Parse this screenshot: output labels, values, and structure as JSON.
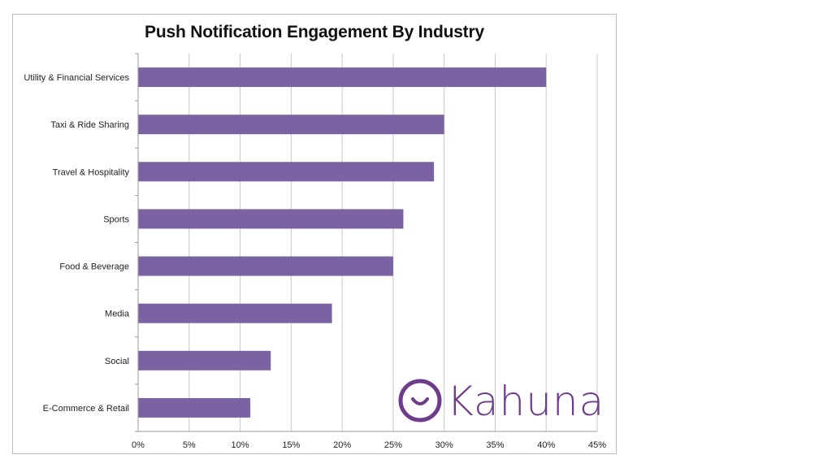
{
  "chart_data": {
    "type": "bar",
    "orientation": "horizontal",
    "title": "Push Notification Engagement By Industry",
    "categories": [
      "Utility & Financial Services",
      "Taxi & Ride Sharing",
      "Travel & Hospitality",
      "Sports",
      "Food & Beverage",
      "Media",
      "Social",
      "E-Commerce & Retail"
    ],
    "values": [
      40,
      30,
      29,
      26,
      25,
      19,
      13,
      11
    ],
    "xlim": [
      0,
      45
    ],
    "xticks": [
      "0%",
      "5%",
      "10%",
      "15%",
      "20%",
      "25%",
      "30%",
      "35%",
      "40%",
      "45%"
    ],
    "grid": "vertical",
    "legend": "none",
    "bar_color": "#7b62a3"
  },
  "brand": {
    "name": "Kahuna",
    "color": "#6d3d8a",
    "icon": "smile-circle-icon"
  }
}
